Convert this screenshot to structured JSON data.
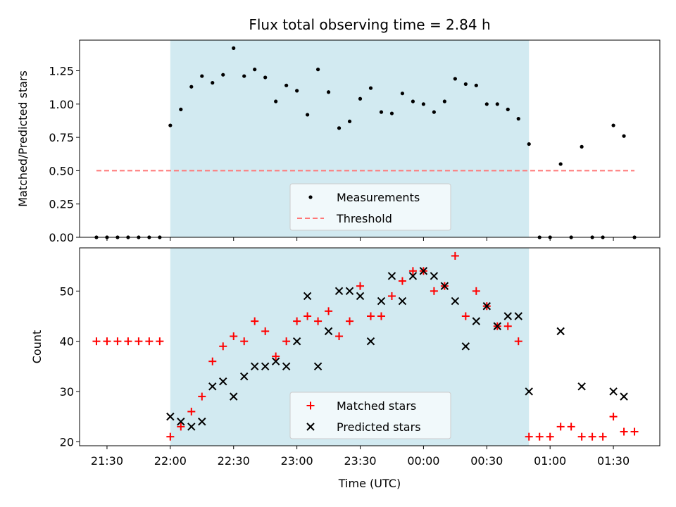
{
  "chart_data": [
    {
      "type": "scatter",
      "title": "Flux total observing time = 2.84 h",
      "ylabel": "Matched/Predicted stars",
      "xlabel": "",
      "ylim": [
        0,
        1.48
      ],
      "xlim": [
        "21:17",
        "01:52"
      ],
      "x_is_time": true,
      "shaded_span": [
        "22:00",
        "00:50"
      ],
      "shaded_color": "#add8e6",
      "yticks": [
        0.0,
        0.25,
        0.5,
        0.75,
        1.0,
        1.25
      ],
      "ytick_labels": [
        "0.00",
        "0.25",
        "0.50",
        "0.75",
        "1.00",
        "1.25"
      ],
      "legend_position": "lower center",
      "threshold": {
        "name": "Threshold",
        "y": 0.5,
        "x_range": [
          "21:25",
          "01:40"
        ],
        "color": "#ff7777"
      },
      "series": [
        {
          "name": "Measurements",
          "marker": "dot",
          "color": "#000000",
          "x": [
            "21:25",
            "21:30",
            "21:35",
            "21:40",
            "21:45",
            "21:50",
            "21:55",
            "22:00",
            "22:05",
            "22:10",
            "22:15",
            "22:20",
            "22:25",
            "22:30",
            "22:35",
            "22:40",
            "22:45",
            "22:50",
            "22:55",
            "23:00",
            "23:05",
            "23:10",
            "23:15",
            "23:20",
            "23:25",
            "23:30",
            "23:35",
            "23:40",
            "23:45",
            "23:50",
            "23:55",
            "00:00",
            "00:05",
            "00:10",
            "00:15",
            "00:20",
            "00:25",
            "00:30",
            "00:35",
            "00:40",
            "00:45",
            "00:50",
            "00:55",
            "01:00",
            "01:05",
            "01:10",
            "01:15",
            "01:20",
            "01:25",
            "01:30",
            "01:35",
            "01:40"
          ],
          "values": [
            0,
            0,
            0,
            0,
            0,
            0,
            0,
            0.84,
            0.96,
            1.13,
            1.21,
            1.16,
            1.22,
            1.42,
            1.21,
            1.26,
            1.2,
            1.02,
            1.14,
            1.1,
            0.92,
            1.26,
            1.09,
            0.82,
            0.87,
            1.04,
            1.12,
            0.94,
            0.93,
            1.08,
            1.02,
            1.0,
            0.94,
            1.02,
            1.19,
            1.15,
            1.14,
            1.0,
            1.0,
            0.96,
            0.89,
            0.7,
            0,
            0,
            0.55,
            0,
            0.68,
            0,
            0,
            0.84,
            0.76,
            0
          ]
        }
      ]
    },
    {
      "type": "scatter",
      "title": "",
      "ylabel": "Count",
      "xlabel": "Time (UTC)",
      "ylim": [
        19.2,
        58.6
      ],
      "xlim": [
        "21:17",
        "01:52"
      ],
      "x_is_time": true,
      "shaded_span": [
        "22:00",
        "00:50"
      ],
      "shaded_color": "#add8e6",
      "yticks": [
        20,
        30,
        40,
        50
      ],
      "ytick_labels": [
        "20",
        "30",
        "40",
        "50"
      ],
      "xticks": [
        "21:30",
        "22:00",
        "22:30",
        "23:00",
        "23:30",
        "00:00",
        "00:30",
        "01:00",
        "01:30"
      ],
      "xtick_labels": [
        "21:30",
        "22:00",
        "22:30",
        "23:00",
        "23:30",
        "00:00",
        "00:30",
        "01:00",
        "01:30"
      ],
      "legend_position": "lower center",
      "series": [
        {
          "name": "Matched stars",
          "marker": "plus",
          "color": "#ff0000",
          "x": [
            "21:25",
            "21:30",
            "21:35",
            "21:40",
            "21:45",
            "21:50",
            "21:55",
            "22:00",
            "22:05",
            "22:10",
            "22:15",
            "22:20",
            "22:25",
            "22:30",
            "22:35",
            "22:40",
            "22:45",
            "22:50",
            "22:55",
            "23:00",
            "23:05",
            "23:10",
            "23:15",
            "23:20",
            "23:25",
            "23:30",
            "23:35",
            "23:40",
            "23:45",
            "23:50",
            "23:55",
            "00:00",
            "00:05",
            "00:10",
            "00:15",
            "00:20",
            "00:25",
            "00:30",
            "00:35",
            "00:40",
            "00:45",
            "00:50",
            "00:55",
            "01:00",
            "01:05",
            "01:10",
            "01:15",
            "01:20",
            "01:25",
            "01:30",
            "01:35",
            "01:40"
          ],
          "values": [
            40,
            40,
            40,
            40,
            40,
            40,
            40,
            21,
            23,
            26,
            29,
            36,
            39,
            41,
            40,
            44,
            42,
            37,
            40,
            44,
            45,
            44,
            46,
            41,
            44,
            51,
            45,
            45,
            49,
            52,
            54,
            54,
            50,
            51,
            57,
            45,
            50,
            47,
            43,
            43,
            40,
            21,
            21,
            21,
            23,
            23,
            21,
            21,
            21,
            25,
            22,
            22
          ]
        },
        {
          "name": "Predicted stars",
          "marker": "x",
          "color": "#000000",
          "x": [
            "22:00",
            "22:05",
            "22:10",
            "22:15",
            "22:20",
            "22:25",
            "22:30",
            "22:35",
            "22:40",
            "22:45",
            "22:50",
            "22:55",
            "23:00",
            "23:05",
            "23:10",
            "23:15",
            "23:20",
            "23:25",
            "23:30",
            "23:35",
            "23:40",
            "23:45",
            "23:50",
            "23:55",
            "00:00",
            "00:05",
            "00:10",
            "00:15",
            "00:20",
            "00:25",
            "00:30",
            "00:35",
            "00:40",
            "00:45",
            "00:50",
            "01:05",
            "01:15",
            "01:30",
            "01:35"
          ],
          "values": [
            25,
            24,
            23,
            24,
            31,
            32,
            29,
            33,
            35,
            35,
            36,
            35,
            40,
            49,
            35,
            42,
            50,
            50,
            49,
            40,
            48,
            53,
            48,
            53,
            54,
            53,
            51,
            48,
            39,
            44,
            47,
            43,
            45,
            45,
            30,
            42,
            31,
            30,
            29
          ]
        }
      ]
    }
  ]
}
